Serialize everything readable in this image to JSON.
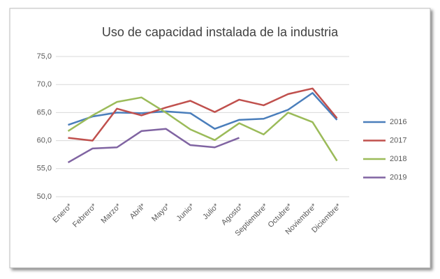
{
  "chart_data": {
    "type": "line",
    "title": "Uso de capacidad instalada de la industria",
    "categories": [
      "Enero*",
      "Febrero*",
      "Marzo*",
      "Abril*",
      "Mayo*",
      "Junio*",
      "Julio*",
      "Agosto*",
      "Septiembre*",
      "Octubre*",
      "Noviembre*",
      "Diciembre*"
    ],
    "series": [
      {
        "name": "2016",
        "color": "#4a7ebb",
        "values": [
          62.8,
          64.3,
          65.0,
          64.9,
          65.2,
          64.9,
          62.1,
          63.7,
          63.9,
          65.5,
          68.5,
          63.7
        ]
      },
      {
        "name": "2017",
        "color": "#c0504d",
        "values": [
          60.5,
          60.0,
          65.7,
          64.5,
          65.9,
          67.1,
          65.1,
          67.3,
          66.3,
          68.3,
          69.3,
          64.0
        ]
      },
      {
        "name": "2018",
        "color": "#9bbb59",
        "values": [
          61.7,
          64.5,
          66.9,
          67.7,
          65.0,
          62.0,
          60.1,
          63.1,
          61.1,
          65.0,
          63.3,
          56.4
        ]
      },
      {
        "name": "2019",
        "color": "#8064a2",
        "values": [
          56.1,
          58.6,
          58.8,
          61.7,
          62.1,
          59.2,
          58.8,
          60.5,
          null,
          null,
          null,
          null
        ]
      }
    ],
    "ylim": [
      50,
      75
    ],
    "yticks": [
      {
        "value": 50,
        "label": "50,0"
      },
      {
        "value": 55,
        "label": "55,0"
      },
      {
        "value": 60,
        "label": "60,0"
      },
      {
        "value": 65,
        "label": "65,0"
      },
      {
        "value": 70,
        "label": "70,0"
      },
      {
        "value": 75,
        "label": "75,0"
      }
    ],
    "grid": true,
    "legend": "right"
  }
}
